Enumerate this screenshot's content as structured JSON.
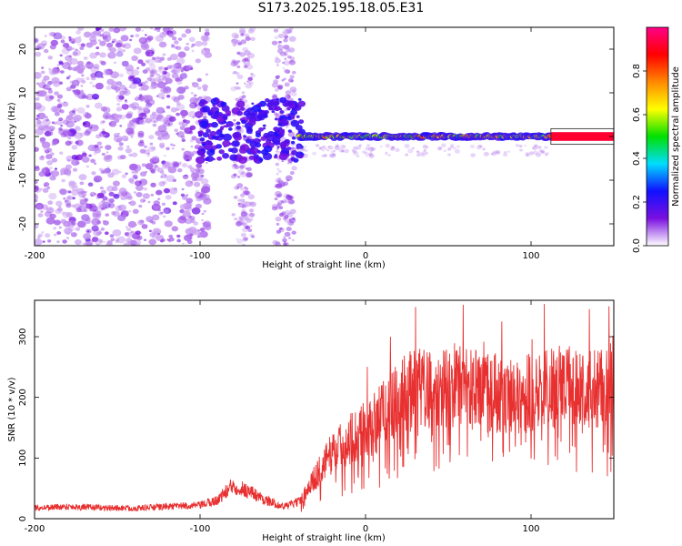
{
  "title": "S173.2025.195.18.05.E31",
  "colors": {
    "snr_line": "#e83030",
    "axes": "#000000",
    "background": "#ffffff"
  },
  "chart_data": [
    {
      "type": "heatmap",
      "xlabel": "Height of straight line (km)",
      "ylabel": "Frequency (Hz)",
      "xlim": [
        -200,
        150
      ],
      "ylim": [
        -25,
        25
      ],
      "x_ticks": [
        -200,
        -100,
        0,
        100
      ],
      "y_ticks": [
        -20,
        -10,
        0,
        10,
        20
      ],
      "colorbar": {
        "label": "Normalized spectral amplitude",
        "range": [
          0.0,
          1.0
        ],
        "ticks": [
          "0.0",
          "0.2",
          "0.4",
          "0.6",
          "0.8"
        ],
        "stops": [
          "#ffffff",
          "#7a10e0",
          "#1010ff",
          "#00ddff",
          "#00e000",
          "#ffff00",
          "#ff8800",
          "#ff0000",
          "#ff0088"
        ]
      },
      "features": {
        "noise_region_km": [
          -200,
          -40
        ],
        "strong_band_center_hz": 0,
        "strong_band_start_km": -40,
        "strong_band_end_km": 112
      }
    },
    {
      "type": "line",
      "xlabel": "Height of straight line (km)",
      "ylabel": "SNR (10 * v/v)",
      "xlim": [
        -200,
        150
      ],
      "ylim": [
        0,
        360
      ],
      "x_ticks": [
        -200,
        -100,
        0,
        100
      ],
      "y_ticks": [
        0,
        100,
        200,
        300
      ],
      "series": [
        {
          "x": [
            -200,
            -180,
            -160,
            -140,
            -120,
            -100,
            -90,
            -80,
            -70,
            -60,
            -50,
            -40,
            -30,
            -20,
            -10,
            0,
            10,
            20,
            30,
            40,
            50,
            60,
            70,
            80,
            90,
            100,
            110,
            120,
            130,
            140,
            150
          ],
          "values": [
            18,
            20,
            18,
            17,
            20,
            22,
            30,
            55,
            45,
            30,
            20,
            28,
            70,
            110,
            130,
            150,
            175,
            200,
            215,
            220,
            220,
            218,
            210,
            205,
            200,
            210,
            220,
            215,
            220,
            215,
            230
          ]
        }
      ]
    }
  ]
}
